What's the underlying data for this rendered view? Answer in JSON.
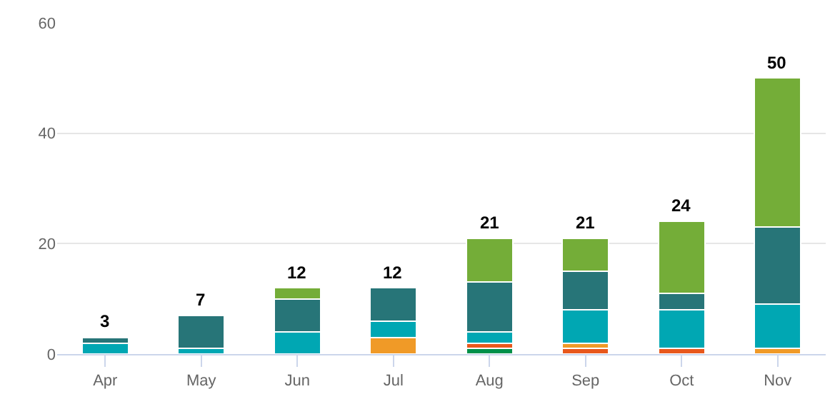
{
  "chart_data": {
    "type": "bar",
    "stacked": true,
    "categories": [
      "Apr",
      "May",
      "Jun",
      "Jul",
      "Aug",
      "Sep",
      "Oct",
      "Nov"
    ],
    "series": [
      {
        "color": "#00904a",
        "values": [
          null,
          null,
          null,
          null,
          1,
          null,
          null,
          null
        ]
      },
      {
        "color": "#e8581c",
        "values": [
          null,
          null,
          null,
          null,
          1,
          1,
          1,
          null
        ]
      },
      {
        "color": "#f09a27",
        "values": [
          null,
          null,
          null,
          3,
          null,
          1,
          null,
          1
        ]
      },
      {
        "color": "#00a7b3",
        "values": [
          2,
          1,
          4,
          3,
          2,
          6,
          7,
          8
        ]
      },
      {
        "color": "#277578",
        "values": [
          1,
          6,
          6,
          6,
          9,
          7,
          3,
          14
        ]
      },
      {
        "color": "#74ad38",
        "values": [
          null,
          null,
          2,
          null,
          8,
          6,
          13,
          27
        ]
      }
    ],
    "totals": [
      "3",
      "7",
      "12",
      "12",
      "21",
      "21",
      "24",
      "50"
    ],
    "ylim": [
      0,
      60
    ],
    "yticks": [
      0,
      20,
      40,
      60
    ],
    "grid": "y"
  }
}
